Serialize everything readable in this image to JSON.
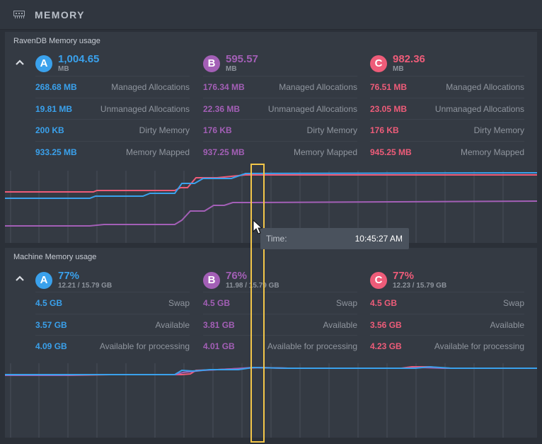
{
  "header": {
    "title": "MEMORY"
  },
  "colors": {
    "a": "#3aa1ec",
    "b": "#a35fb6",
    "c": "#ee5c79",
    "highlight": "#f3c649"
  },
  "ravendb": {
    "title": "RavenDB Memory usage",
    "nodes": [
      {
        "tag": "A",
        "color": "blue",
        "value": "1,004.65",
        "unit": "MB",
        "rows": [
          {
            "value": "268.68 MB",
            "label": "Managed Allocations"
          },
          {
            "value": "19.81 MB",
            "label": "Unmanaged Allocations"
          },
          {
            "value": "200 KB",
            "label": "Dirty Memory"
          },
          {
            "value": "933.25 MB",
            "label": "Memory Mapped"
          }
        ]
      },
      {
        "tag": "B",
        "color": "purple",
        "value": "595.57",
        "unit": "MB",
        "rows": [
          {
            "value": "176.34 MB",
            "label": "Managed Allocations"
          },
          {
            "value": "22.36 MB",
            "label": "Unmanaged Allocations"
          },
          {
            "value": "176 KB",
            "label": "Dirty Memory"
          },
          {
            "value": "937.25 MB",
            "label": "Memory Mapped"
          }
        ]
      },
      {
        "tag": "C",
        "color": "red",
        "value": "982.36",
        "unit": "MB",
        "rows": [
          {
            "value": "76.51 MB",
            "label": "Managed Allocations"
          },
          {
            "value": "23.05 MB",
            "label": "Unmanaged Allocations"
          },
          {
            "value": "176 KB",
            "label": "Dirty Memory"
          },
          {
            "value": "945.25 MB",
            "label": "Memory Mapped"
          }
        ]
      }
    ]
  },
  "machine": {
    "title": "Machine Memory usage",
    "nodes": [
      {
        "tag": "A",
        "color": "blue",
        "value": "77%",
        "unit": "12.21 / 15.79 GB",
        "rows": [
          {
            "value": "4.5 GB",
            "label": "Swap"
          },
          {
            "value": "3.57 GB",
            "label": "Available"
          },
          {
            "value": "4.09 GB",
            "label": "Available for processing"
          }
        ]
      },
      {
        "tag": "B",
        "color": "purple",
        "value": "76%",
        "unit": "11.98 / 15.79 GB",
        "rows": [
          {
            "value": "4.5 GB",
            "label": "Swap"
          },
          {
            "value": "3.81 GB",
            "label": "Available"
          },
          {
            "value": "4.01 GB",
            "label": "Available for processing"
          }
        ]
      },
      {
        "tag": "C",
        "color": "red",
        "value": "77%",
        "unit": "12.23 / 15.79 GB",
        "rows": [
          {
            "value": "4.5 GB",
            "label": "Swap"
          },
          {
            "value": "3.56 GB",
            "label": "Available"
          },
          {
            "value": "4.23 GB",
            "label": "Available for processing"
          }
        ]
      }
    ]
  },
  "tooltip": {
    "label": "Time:",
    "value": "10:45:27 AM"
  }
}
